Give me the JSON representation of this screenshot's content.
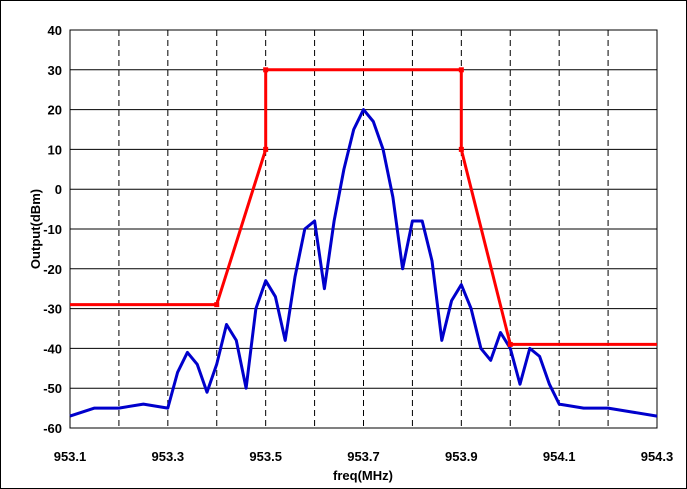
{
  "chart_data": {
    "type": "line",
    "title": "",
    "xlabel": "freq(MHz)",
    "ylabel": "Output(dBm)",
    "xlim": [
      953.1,
      954.3
    ],
    "ylim": [
      -60,
      40
    ],
    "x_ticks": [
      "953.1",
      "953.3",
      "953.5",
      "953.7",
      "953.9",
      "954.1",
      "954.3"
    ],
    "y_ticks": [
      "40",
      "30",
      "20",
      "10",
      "0",
      "-10",
      "-20",
      "-30",
      "-40",
      "-50",
      "-60"
    ],
    "grid": {
      "x": "dashed",
      "y": "solid"
    },
    "legend": "none",
    "series": [
      {
        "color": "#ff0000",
        "style": "line-with-markers",
        "x": [
          953.1,
          953.4,
          953.5,
          953.5,
          953.9,
          953.9,
          954.0,
          954.3
        ],
        "values": [
          -29,
          -29,
          10,
          30,
          30,
          10,
          -39,
          -39
        ]
      },
      {
        "color": "#0000cc",
        "style": "line",
        "x": [
          953.1,
          953.15,
          953.2,
          953.25,
          953.3,
          953.32,
          953.34,
          953.36,
          953.38,
          953.4,
          953.42,
          953.44,
          953.46,
          953.48,
          953.5,
          953.52,
          953.54,
          953.56,
          953.58,
          953.6,
          953.62,
          953.64,
          953.66,
          953.68,
          953.7,
          953.72,
          953.74,
          953.76,
          953.78,
          953.8,
          953.82,
          953.84,
          953.86,
          953.88,
          953.9,
          953.92,
          953.94,
          953.96,
          953.98,
          954.0,
          954.02,
          954.04,
          954.06,
          954.08,
          954.1,
          954.15,
          954.2,
          954.25,
          954.3
        ],
        "values": [
          -57,
          -55,
          -55,
          -54,
          -55,
          -46,
          -41,
          -44,
          -51,
          -44,
          -34,
          -38,
          -50,
          -30,
          -23,
          -27,
          -38,
          -22,
          -10,
          -8,
          -25,
          -8,
          5,
          15,
          20,
          17,
          10,
          -2,
          -20,
          -8,
          -8,
          -18,
          -38,
          -28,
          -24,
          -30,
          -40,
          -43,
          -36,
          -40,
          -49,
          -40,
          -42,
          -49,
          -54,
          -55,
          -55,
          -56,
          -57
        ]
      }
    ]
  }
}
